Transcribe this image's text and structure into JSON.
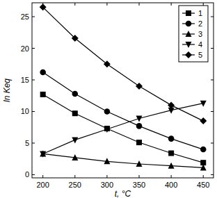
{
  "chart_data": {
    "type": "line",
    "x_label": "t, °C",
    "y_label": "ln Keq",
    "x": [
      200,
      250,
      300,
      350,
      400,
      450
    ],
    "series": [
      {
        "name": "1",
        "color": "#000000",
        "marker": "square",
        "values": [
          12.7,
          9.7,
          7.3,
          5.1,
          3.4,
          1.9
        ]
      },
      {
        "name": "2",
        "color": "#000000",
        "marker": "circle",
        "values": [
          16.2,
          12.8,
          10.0,
          7.7,
          5.7,
          4.0
        ]
      },
      {
        "name": "3",
        "color": "#000000",
        "marker": "triangle",
        "values": [
          3.3,
          2.7,
          2.1,
          1.7,
          1.4,
          1.1
        ]
      },
      {
        "name": "4",
        "color": "#000000",
        "marker": "triangle-down",
        "values": [
          3.3,
          5.5,
          7.2,
          8.9,
          10.2,
          11.3
        ]
      },
      {
        "name": "5",
        "color": "#000000",
        "marker": "diamond",
        "values": [
          26.5,
          21.6,
          17.5,
          14.0,
          11.0,
          8.5
        ]
      }
    ],
    "xlim": [
      183,
      466
    ],
    "ylim": [
      -0.5,
      27.2
    ],
    "xticks": [
      200,
      250,
      300,
      350,
      400,
      450
    ],
    "yticks": [
      0,
      5,
      10,
      15,
      20,
      25
    ],
    "grid": false,
    "legend": "upper right"
  }
}
